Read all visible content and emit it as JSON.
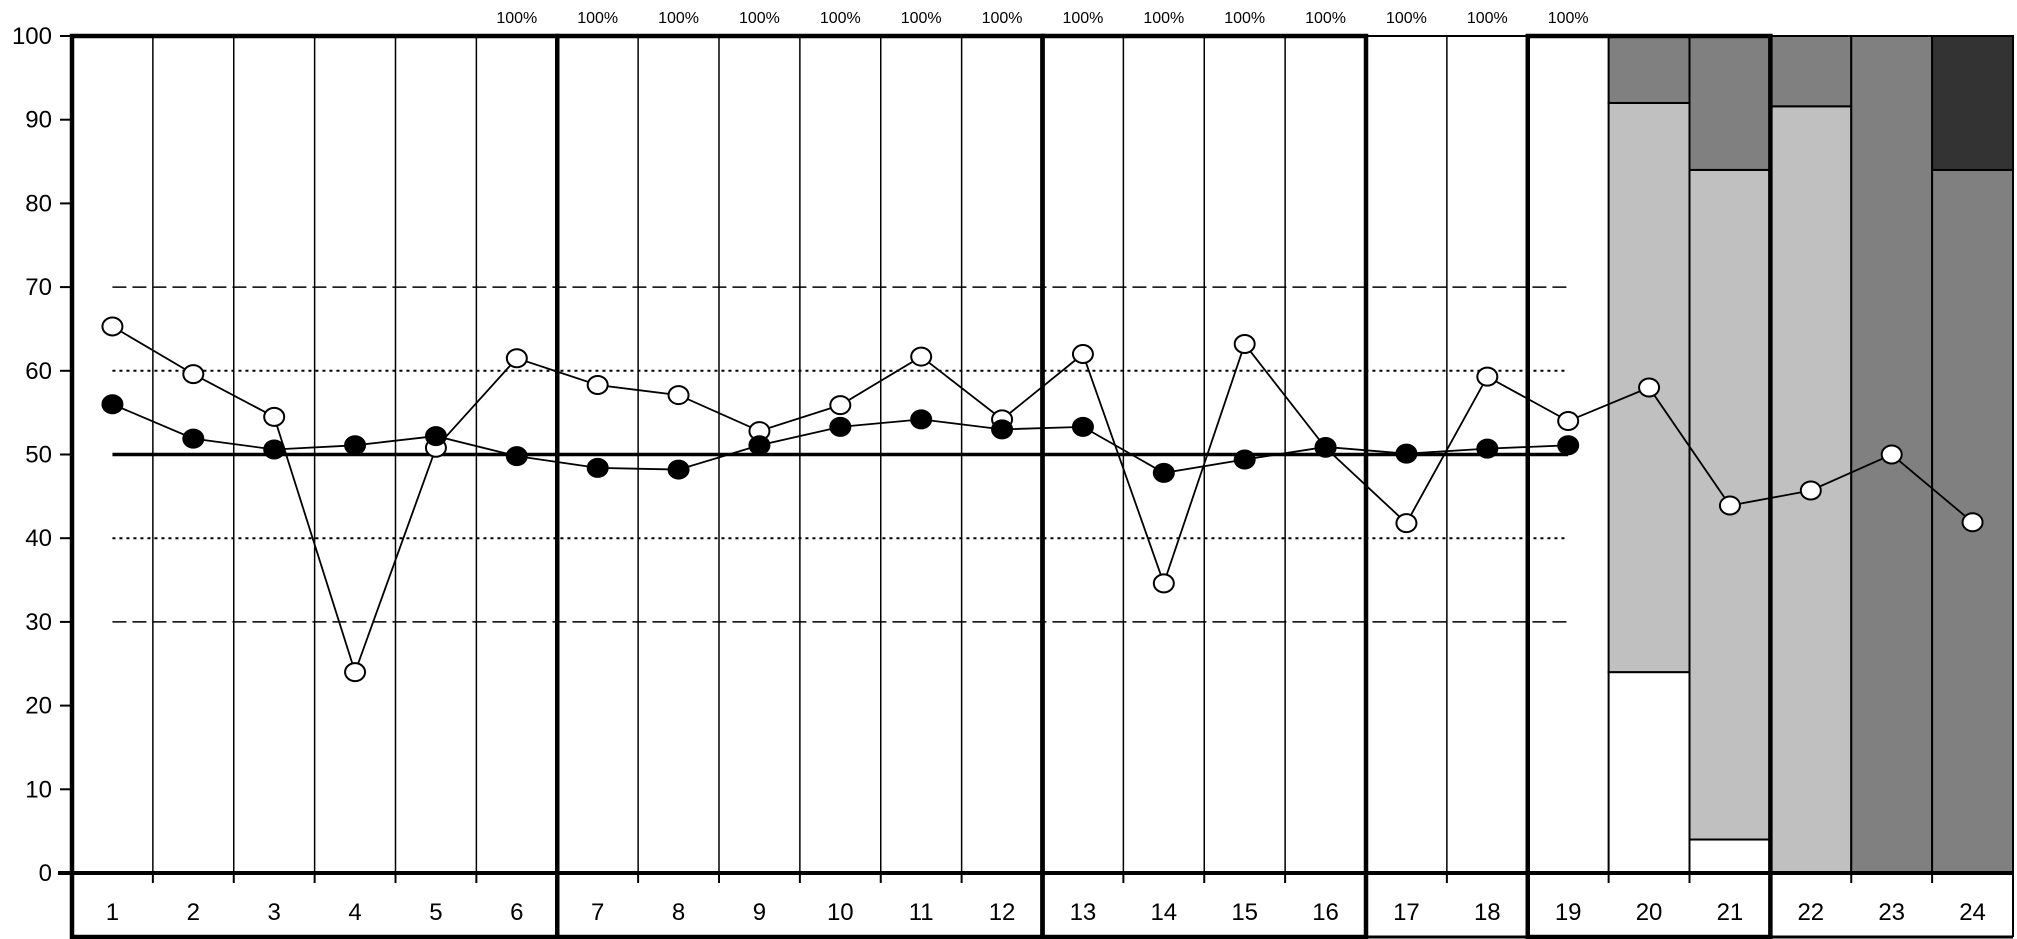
{
  "chart_data": {
    "type": "line",
    "title": "",
    "xlabel": "",
    "ylabel": "",
    "ylim": [
      0,
      100
    ],
    "y_ticks": [
      "0",
      "10",
      "20",
      "30",
      "40",
      "50",
      "60",
      "70",
      "80",
      "90",
      "100"
    ],
    "categories": [
      "1",
      "2",
      "3",
      "4",
      "5",
      "6",
      "7",
      "8",
      "9",
      "10",
      "11",
      "12",
      "13",
      "14",
      "15",
      "16",
      "17",
      "18",
      "19",
      "20",
      "21",
      "22",
      "23",
      "24"
    ],
    "series": [
      {
        "marker": "open-circle",
        "values": [
          65.3,
          59.6,
          54.5,
          24.0,
          50.8,
          61.5,
          58.3,
          57.1,
          52.8,
          55.9,
          61.7,
          54.2,
          62.0,
          34.6,
          63.2,
          50.8,
          41.8,
          59.3,
          54.0,
          58.0,
          43.9,
          45.7,
          50.0,
          41.9
        ]
      },
      {
        "marker": "filled-circle",
        "values": [
          56.0,
          51.9,
          50.6,
          51.1,
          52.2,
          49.8,
          48.4,
          48.2,
          51.1,
          53.3,
          54.2,
          53.0,
          53.3,
          47.8,
          49.4,
          50.9,
          50.1,
          50.7,
          51.1,
          null,
          null,
          null,
          null,
          null
        ]
      }
    ],
    "reference_lines": [
      {
        "value": 50,
        "style": "solid-thick"
      },
      {
        "value": 60,
        "style": "dotted"
      },
      {
        "value": 40,
        "style": "dotted"
      },
      {
        "value": 70,
        "style": "dashed"
      },
      {
        "value": 30,
        "style": "dashed"
      }
    ],
    "percent_labels": [
      {
        "column": "6",
        "text": "100%"
      },
      {
        "column": "7",
        "text": "100%"
      },
      {
        "column": "8",
        "text": "100%"
      },
      {
        "column": "9",
        "text": "100%"
      },
      {
        "column": "10",
        "text": "100%"
      },
      {
        "column": "11",
        "text": "100%"
      },
      {
        "column": "12",
        "text": "100%"
      },
      {
        "column": "13",
        "text": "100%"
      },
      {
        "column": "14",
        "text": "100%"
      },
      {
        "column": "15",
        "text": "100%"
      },
      {
        "column": "16",
        "text": "100%"
      },
      {
        "column": "17",
        "text": "100%"
      },
      {
        "column": "18",
        "text": "100%"
      },
      {
        "column": "19",
        "text": "100%"
      }
    ],
    "column_groups": [
      {
        "columns": [
          "1",
          "2",
          "3",
          "4",
          "5",
          "6"
        ],
        "boxed": true
      },
      {
        "columns": [
          "7",
          "8",
          "9",
          "10",
          "11",
          "12"
        ],
        "boxed": true
      },
      {
        "columns": [
          "13",
          "14",
          "15",
          "16"
        ],
        "boxed": true
      },
      {
        "columns": [
          "17",
          "18"
        ],
        "boxed": false
      },
      {
        "columns": [
          "19",
          "20",
          "21"
        ],
        "boxed": true
      },
      {
        "columns": [
          "22",
          "23",
          "24"
        ],
        "boxed": false
      }
    ],
    "stacked_bars": [
      {
        "column": "20",
        "segments": [
          {
            "from": 0,
            "to": 24,
            "color": "#ffffff"
          },
          {
            "from": 24,
            "to": 92,
            "color": "#c0c0c0"
          },
          {
            "from": 92,
            "to": 100,
            "color": "#808080"
          }
        ]
      },
      {
        "column": "21",
        "segments": [
          {
            "from": 0,
            "to": 4,
            "color": "#ffffff"
          },
          {
            "from": 4,
            "to": 84,
            "color": "#c0c0c0"
          },
          {
            "from": 84,
            "to": 100,
            "color": "#808080"
          }
        ]
      },
      {
        "column": "22",
        "segments": [
          {
            "from": 0,
            "to": 91.6,
            "color": "#c0c0c0"
          },
          {
            "from": 91.6,
            "to": 100,
            "color": "#808080"
          }
        ]
      },
      {
        "column": "23",
        "segments": [
          {
            "from": 0,
            "to": 100,
            "color": "#808080"
          }
        ]
      },
      {
        "column": "24",
        "segments": [
          {
            "from": 0,
            "to": 84,
            "color": "#808080"
          },
          {
            "from": 84,
            "to": 100,
            "color": "#333333"
          }
        ]
      }
    ],
    "grid": true,
    "legend": "none"
  }
}
